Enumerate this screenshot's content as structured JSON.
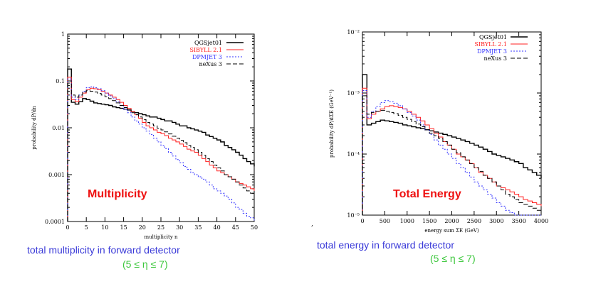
{
  "chart_data": [
    {
      "type": "line",
      "xlabel": "multiplicity n",
      "ylabel": "probability dP/dn",
      "xlim": [
        0,
        50
      ],
      "ylim": [
        0.0001,
        1
      ],
      "yscale": "log",
      "x_ticks": [
        0,
        5,
        10,
        15,
        20,
        25,
        30,
        35,
        40,
        45,
        50
      ],
      "y_ticks": [
        0.0001,
        0.001,
        0.01,
        0.1,
        1
      ],
      "y_tick_labels": [
        "0.0001",
        "0.001",
        "0.01",
        "0.1",
        "1"
      ],
      "legend_placement": "top-right",
      "annotation": "Multiplicity",
      "x": [
        0,
        1,
        2,
        3,
        4,
        5,
        6,
        7,
        8,
        9,
        10,
        11,
        12,
        13,
        14,
        15,
        16,
        17,
        18,
        19,
        20,
        21,
        22,
        23,
        24,
        25,
        26,
        27,
        28,
        29,
        30,
        31,
        32,
        33,
        34,
        35,
        36,
        37,
        38,
        39,
        40,
        41,
        42,
        43,
        44,
        45,
        46,
        47,
        48,
        49,
        50
      ],
      "series": [
        {
          "name": "QGSjet01",
          "color": "#000000",
          "dash": "",
          "values": [
            0.18,
            0.035,
            0.032,
            0.036,
            0.042,
            0.04,
            0.037,
            0.034,
            0.033,
            0.032,
            0.031,
            0.03,
            0.028,
            0.027,
            0.026,
            0.025,
            0.024,
            0.022,
            0.021,
            0.02,
            0.019,
            0.018,
            0.017,
            0.017,
            0.016,
            0.015,
            0.014,
            0.014,
            0.013,
            0.012,
            0.011,
            0.011,
            0.01,
            0.0095,
            0.009,
            0.0085,
            0.008,
            0.007,
            0.0065,
            0.006,
            0.0055,
            0.005,
            0.0042,
            0.0038,
            0.0034,
            0.003,
            0.0026,
            0.0022,
            0.0019,
            0.0017,
            0.0015
          ]
        },
        {
          "name": "SIBYLL 2.1",
          "color": "#ff2020",
          "dash": "",
          "values": [
            0.12,
            0.04,
            0.036,
            0.045,
            0.055,
            0.065,
            0.07,
            0.068,
            0.065,
            0.06,
            0.055,
            0.05,
            0.045,
            0.04,
            0.035,
            0.03,
            0.026,
            0.022,
            0.019,
            0.016,
            0.013,
            0.011,
            0.01,
            0.009,
            0.008,
            0.0075,
            0.0068,
            0.006,
            0.0055,
            0.005,
            0.0045,
            0.004,
            0.0035,
            0.0032,
            0.003,
            0.0026,
            0.0022,
            0.0019,
            0.0016,
            0.0014,
            0.0012,
            0.0011,
            0.001,
            0.0009,
            0.0008,
            0.0007,
            0.00065,
            0.0006,
            0.00055,
            0.0005,
            0.00045
          ]
        },
        {
          "name": "DPMJET 3",
          "color": "#3333ff",
          "dash": "2,2",
          "values": [
            0.11,
            0.045,
            0.04,
            0.05,
            0.06,
            0.072,
            0.075,
            0.072,
            0.068,
            0.062,
            0.055,
            0.048,
            0.042,
            0.036,
            0.03,
            0.025,
            0.021,
            0.017,
            0.014,
            0.012,
            0.01,
            0.0085,
            0.0072,
            0.006,
            0.005,
            0.0042,
            0.0036,
            0.003,
            0.0025,
            0.0021,
            0.0018,
            0.0015,
            0.0013,
            0.0011,
            0.001,
            0.0009,
            0.0008,
            0.0007,
            0.0006,
            0.0005,
            0.00045,
            0.0004,
            0.00035,
            0.0003,
            0.00025,
            0.0002,
            0.00018,
            0.00015,
            0.00013,
            0.00012,
            0.0001
          ]
        },
        {
          "name": "neXus 3",
          "color": "#000000",
          "dash": "6,3",
          "values": [
            0.1,
            0.05,
            0.045,
            0.05,
            0.058,
            0.062,
            0.06,
            0.058,
            0.054,
            0.05,
            0.046,
            0.042,
            0.038,
            0.034,
            0.03,
            0.027,
            0.024,
            0.021,
            0.019,
            0.017,
            0.015,
            0.013,
            0.012,
            0.011,
            0.0098,
            0.009,
            0.0082,
            0.0074,
            0.0066,
            0.006,
            0.0054,
            0.0048,
            0.0042,
            0.0038,
            0.0034,
            0.003,
            0.0026,
            0.0022,
            0.0019,
            0.0016,
            0.0014,
            0.0012,
            0.001,
            0.0009,
            0.0008,
            0.0007,
            0.0006,
            0.00052,
            0.00045,
            0.0004,
            0.00035
          ]
        }
      ]
    },
    {
      "type": "line",
      "xlabel": "energy sum ΣE   (GeV)",
      "ylabel": "probability dP/dΣE   (GeV⁻¹)",
      "xlim": [
        0,
        4000
      ],
      "ylim": [
        1e-05,
        0.01
      ],
      "yscale": "log",
      "x_ticks": [
        0,
        500,
        1000,
        1500,
        2000,
        2500,
        3000,
        3500,
        4000
      ],
      "y_ticks": [
        1e-05,
        0.0001,
        0.001,
        0.01
      ],
      "y_tick_labels": [
        "10⁻⁵",
        "10⁻⁴",
        "10⁻³",
        "10⁻²"
      ],
      "legend_placement": "top-right",
      "annotation": "Total Energy",
      "x": [
        0,
        100,
        200,
        300,
        400,
        500,
        600,
        700,
        800,
        900,
        1000,
        1100,
        1200,
        1300,
        1400,
        1500,
        1600,
        1700,
        1800,
        1900,
        2000,
        2100,
        2200,
        2300,
        2400,
        2500,
        2600,
        2700,
        2800,
        2900,
        3000,
        3100,
        3200,
        3300,
        3400,
        3500,
        3600,
        3700,
        3800,
        3900,
        4000
      ],
      "series": [
        {
          "name": "QGSjet01",
          "color": "#000000",
          "dash": "",
          "values": [
            0.002,
            0.0003,
            0.00032,
            0.00034,
            0.00036,
            0.00035,
            0.00034,
            0.00033,
            0.00032,
            0.0003,
            0.00029,
            0.00028,
            0.00027,
            0.00026,
            0.00025,
            0.00024,
            0.00023,
            0.00022,
            0.00021,
            0.0002,
            0.00019,
            0.00018,
            0.00017,
            0.00016,
            0.00015,
            0.00014,
            0.00013,
            0.00012,
            0.00011,
            0.0001,
            9.5e-05,
            9e-05,
            8.5e-05,
            8e-05,
            7.5e-05,
            7e-05,
            6e-05,
            5.5e-05,
            5e-05,
            4.5e-05,
            4e-05
          ]
        },
        {
          "name": "SIBYLL 2.1",
          "color": "#ff2020",
          "dash": "",
          "values": [
            0.0012,
            0.00038,
            0.00045,
            0.0005,
            0.00055,
            0.0006,
            0.00062,
            0.0006,
            0.00058,
            0.00055,
            0.0005,
            0.00045,
            0.0004,
            0.00035,
            0.0003,
            0.00026,
            0.00022,
            0.00019,
            0.00016,
            0.00014,
            0.00012,
            0.0001,
            9e-05,
            8e-05,
            7e-05,
            6e-05,
            5e-05,
            4.5e-05,
            4e-05,
            3.5e-05,
            3e-05,
            2.8e-05,
            2.6e-05,
            2.4e-05,
            2.2e-05,
            2e-05,
            1.8e-05,
            1.7e-05,
            1.6e-05,
            1.5e-05,
            1.4e-05
          ]
        },
        {
          "name": "DPMJET 3",
          "color": "#3333ff",
          "dash": "2,2",
          "values": [
            0.0011,
            0.0004,
            0.0005,
            0.0006,
            0.0007,
            0.00075,
            0.00072,
            0.00068,
            0.00062,
            0.00055,
            0.00048,
            0.00042,
            0.00036,
            0.0003,
            0.00025,
            0.00021,
            0.00017,
            0.00014,
            0.00012,
            0.0001,
            8.5e-05,
            7e-05,
            6e-05,
            5e-05,
            4.2e-05,
            3.5e-05,
            3e-05,
            2.6e-05,
            2.2e-05,
            1.9e-05,
            1.6e-05,
            1.4e-05,
            1.2e-05,
            1.1e-05,
            1e-05,
            1e-05,
            1e-05,
            1e-05,
            1e-05,
            1e-05,
            1e-05
          ]
        },
        {
          "name": "neXus 3",
          "color": "#000000",
          "dash": "6,3",
          "values": [
            0.0009,
            0.00045,
            0.00048,
            0.0005,
            0.00052,
            0.0005,
            0.00048,
            0.00046,
            0.00043,
            0.0004,
            0.00037,
            0.00034,
            0.00031,
            0.00028,
            0.00025,
            0.00022,
            0.0002,
            0.00018,
            0.00016,
            0.00014,
            0.00012,
            0.000105,
            9e-05,
            8e-05,
            7e-05,
            6e-05,
            5.2e-05,
            4.5e-05,
            4e-05,
            3.5e-05,
            3e-05,
            2.6e-05,
            2.2e-05,
            2e-05,
            1.8e-05,
            1.6e-05,
            1.5e-05,
            1.4e-05,
            1.3e-05,
            1.2e-05,
            1.1e-05
          ]
        }
      ]
    }
  ],
  "captions": {
    "left_line1": "total multiplicity in forward detector",
    "left_line2": "(5 ≤ η ≤ 7)",
    "right_line1": "total energy in forward detector",
    "right_line2": "(5 ≤ η ≤ 7)"
  },
  "colors": {
    "caption_blue": "#3a3ad8",
    "caption_green": "#3cc73c",
    "annotation_red": "#ee1111"
  }
}
